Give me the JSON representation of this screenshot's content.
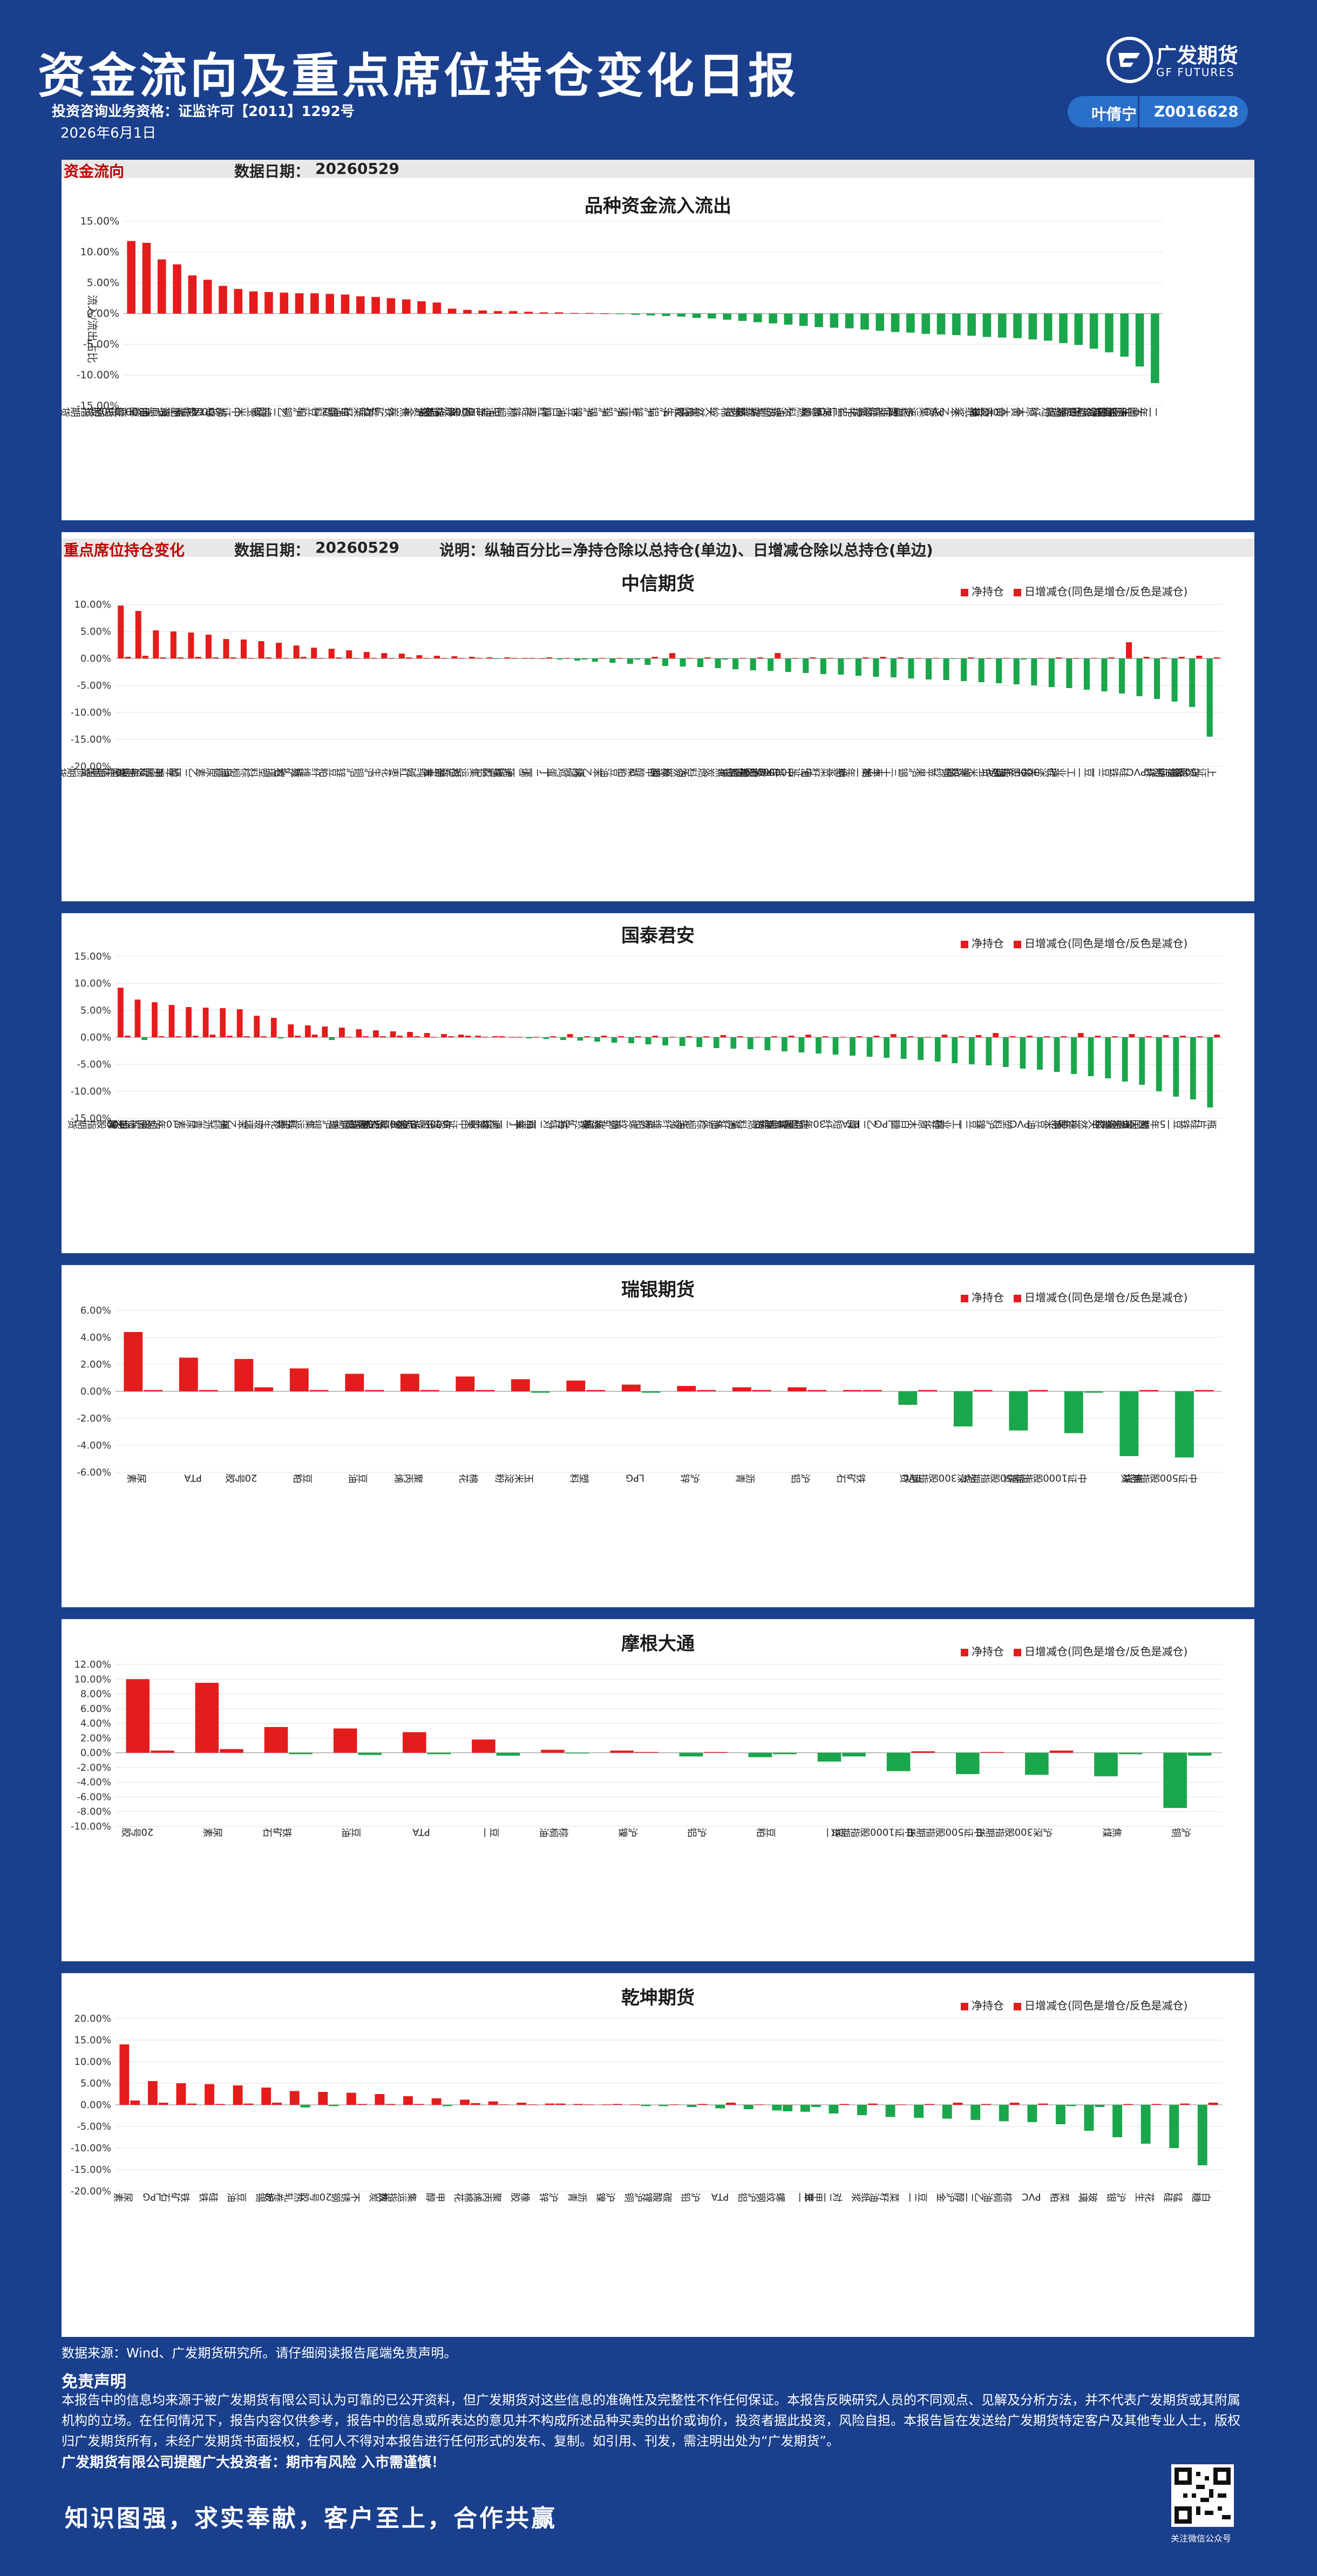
{
  "header": {
    "title": "资金流向及重点席位持仓变化日报",
    "qualification": "投资咨询业务资格：证监许可【2011】1292号",
    "date": "2026年6月1日",
    "logo_cn": "广发期货",
    "logo_en": "GF FUTURES",
    "author_name": "叶倩宁",
    "author_code": "Z0016628"
  },
  "section1": {
    "name": "资金流向",
    "date_label": "数据日期：",
    "date_value": "20260529"
  },
  "section2": {
    "name": "重点席位持仓变化",
    "date_label": "数据日期：",
    "date_value": "20260529",
    "note": "说明：纵轴百分比=净持仓除以总持仓(单边)、日增减仓除以总持仓(单边)"
  },
  "legend": {
    "net": "净持仓",
    "delta": "日增减仓(同色是增仓/反色是减仓)"
  },
  "colors": {
    "up": "#e51c1c",
    "down": "#1aa64b",
    "brand": "#1a3f8c"
  },
  "chart_data": [
    {
      "id": "flow",
      "type": "bar",
      "title": "品种资金流入流出",
      "ylabel": "流入/流出占比",
      "ylim": [
        -15,
        15
      ],
      "yticks": [
        "15.00%",
        "10.00%",
        "5.00%",
        "0.00%",
        "-5.00%",
        "-10.00%",
        "-15.00%"
      ],
      "categories": [
        "上证50股指期货",
        "甲醇",
        "沪深300股指期货",
        "上海原油",
        "尿素",
        "PTA",
        "郑棉",
        "中证500股指期货",
        "玉米",
        "纯碱",
        "乙二醇",
        "沪铜",
        "豆粕",
        "塑料",
        "甲醇2",
        "菜籽油",
        "锰硅",
        "铁矿石",
        "焦炭",
        "沪金",
        "沪银",
        "纤维板",
        "鸡蛋",
        "苹果",
        "中证1000股指期货",
        "棕榈油",
        "硅铁",
        "红枣",
        "白糖",
        "豆油",
        "沪镍",
        "沪锡",
        "沪铅",
        "生猪",
        "沪锌",
        "沪铝",
        "花生",
        "焦煤",
        "天然橡胶",
        "棉纱",
        "菜粕",
        "螺纹钢",
        "热轧卷板",
        "不锈钢",
        "燃料油",
        "沥青",
        "LPG",
        "丁二烯橡胶",
        "氧化铝",
        "碳酸锂",
        "工业硅",
        "多晶硅",
        "集运指数",
        "PVC",
        "苯乙烯",
        "纸浆",
        "玻璃",
        "黄大豆",
        "黄大豆二号",
        "原木",
        "短纤",
        "烧碱",
        "国际铜",
        "对二甲苯",
        "瓶片",
        "十年国债期货",
        "五年国债期货",
        "二年国债期货"
      ],
      "values": [
        11.8,
        11.5,
        8.8,
        8.0,
        6.2,
        5.5,
        4.5,
        4.0,
        3.6,
        3.5,
        3.4,
        3.3,
        3.3,
        3.2,
        3.1,
        2.8,
        2.7,
        2.5,
        2.3,
        2.0,
        1.8,
        0.8,
        0.6,
        0.5,
        0.4,
        0.4,
        0.3,
        0.2,
        0.2,
        0.1,
        0.1,
        0.0,
        -0.1,
        -0.2,
        -0.3,
        -0.4,
        -0.5,
        -0.7,
        -0.8,
        -1.0,
        -1.2,
        -1.4,
        -1.6,
        -1.8,
        -2.0,
        -2.2,
        -2.3,
        -2.4,
        -2.6,
        -2.8,
        -3.0,
        -3.1,
        -3.3,
        -3.4,
        -3.5,
        -3.6,
        -3.8,
        -3.9,
        -4.0,
        -4.2,
        -4.4,
        -4.8,
        -5.1,
        -5.7,
        -6.3,
        -7.0,
        -8.6,
        -11.3
      ]
    },
    {
      "id": "citic",
      "type": "bar",
      "title": "中信期货",
      "ylim": [
        -20,
        10
      ],
      "yticks": [
        "10.00%",
        "5.00%",
        "0.00%",
        "-5.00%",
        "-10.00%",
        "-15.00%",
        "-20.00%"
      ],
      "categories": [
        "30年期国债期货",
        "2年期国债期货",
        "甲醇",
        "5年期国债期货",
        "乙二醇",
        "尿素",
        "白糖",
        "棕榈油",
        "塑料",
        "玻璃",
        "铁矿石",
        "纤维板",
        "豆粕",
        "沪锌",
        "沪铜",
        "花生",
        "红枣",
        "纯碱",
        "沥青",
        "对二甲苯",
        "集运指数",
        "沪铝",
        "沪镍",
        "丁二烯橡胶",
        "丁二烯",
        "鸡蛋",
        "烧碱",
        "苯乙烯",
        "豆油",
        "菜粕",
        "甲醇2",
        "原油",
        "天然橡胶",
        "燃料油",
        "焦炭",
        "沪银",
        "沪金",
        "LPG",
        "中证500股指期货",
        "中证1000股指期货",
        "菜籽油",
        "纸浆",
        "二年期",
        "玉米",
        "三十年期",
        "沪锡",
        "苹果",
        "棉纱",
        "螺纹钢",
        "玉米淀粉",
        "PTA",
        "十年期",
        "生猪",
        "沪深300股指期货",
        "工业硅",
        "豆一",
        "豆二",
        "硅铁",
        "PVC",
        "短纤",
        "瓶片",
        "碳酸锂",
        "上证50股指期货"
      ],
      "net": [
        9.8,
        8.8,
        5.2,
        5.0,
        4.8,
        4.4,
        3.6,
        3.5,
        3.2,
        2.9,
        2.4,
        2.0,
        1.8,
        1.5,
        1.2,
        1.0,
        0.9,
        0.6,
        0.5,
        0.4,
        0.3,
        0.2,
        0.2,
        0.1,
        0.0,
        -0.2,
        -0.4,
        -0.6,
        -0.8,
        -1.0,
        -1.2,
        -1.4,
        -1.5,
        -1.6,
        -1.8,
        -2.0,
        -2.2,
        -2.3,
        -2.5,
        -2.7,
        -2.9,
        -3.0,
        -3.2,
        -3.4,
        -3.5,
        -3.7,
        -3.9,
        -4.0,
        -4.2,
        -4.4,
        -4.6,
        -4.8,
        -5.0,
        -5.3,
        -5.5,
        -5.8,
        -6.1,
        -6.5,
        -7.0,
        -7.5,
        -8.0,
        -9.0,
        -14.5
      ],
      "delta": [
        0.3,
        0.5,
        0.2,
        0.2,
        0.3,
        0.2,
        0.2,
        0.1,
        0.2,
        0.1,
        0.3,
        0.1,
        0.2,
        0.1,
        0.1,
        0.1,
        0.2,
        0.1,
        0.1,
        0.1,
        0.1,
        -0.1,
        0.1,
        0.1,
        0.2,
        0.1,
        -0.2,
        0.1,
        0.1,
        -0.2,
        0.3,
        1.0,
        0.1,
        0.2,
        -0.2,
        0.1,
        0.2,
        1.0,
        0.1,
        0.2,
        0.1,
        -0.1,
        0.2,
        0.3,
        0.2,
        0.1,
        0.1,
        -0.1,
        0.2,
        0.1,
        0.1,
        -0.2,
        0.1,
        0.2,
        0.1,
        0.1,
        0.2,
        3.0,
        0.3,
        0.2,
        0.3,
        0.5,
        0.2
      ]
    },
    {
      "id": "gtja",
      "type": "bar",
      "title": "国泰君安",
      "ylim": [
        -15,
        15
      ],
      "yticks": [
        "15.00%",
        "10.00%",
        "5.00%",
        "0.00%",
        "-5.00%",
        "-10.00%",
        "-15.00%"
      ],
      "categories": [
        "甲醇",
        "沪深300股指期货",
        "沪金",
        "10年期国债期货",
        "尿素",
        "沥青",
        "棉纱",
        "苯乙烯",
        "玻璃",
        "花生",
        "红枣",
        "集运指数",
        "沪银",
        "沪铜",
        "纯碱",
        "沪铝",
        "上证50股指期货",
        "沪锡",
        "中证1000股指期货",
        "焦煤",
        "中证500股指期货",
        "苹果",
        "沪锌",
        "丁二烯橡胶",
        "鸡蛋",
        "对二甲苯",
        "锰硅",
        "铁矿石",
        "烧碱",
        "热轧卷板",
        "螺纹钢",
        "菜粕",
        "纤维板",
        "生猪",
        "棕榈油",
        "焦炭",
        "菜籽油",
        "燃料油",
        "豆粕",
        "多晶硅",
        "碳酸锂",
        "30年期国债期货",
        "短纤",
        "PTA",
        "乙二醇",
        "LPG",
        "白糖",
        "原木",
        "棉花",
        "工业硅",
        "豆二",
        "沪镍",
        "塑料",
        "PVC",
        "豆油",
        "玉米",
        "二年期",
        "天然橡胶",
        "纸浆",
        "玉米淀粉",
        "黄大豆",
        "5年期国债期货",
        "豆一",
        "硅铁",
        "瓶片"
      ],
      "net": [
        9.2,
        7.0,
        6.5,
        6.0,
        5.6,
        5.5,
        5.4,
        5.2,
        4.0,
        3.6,
        2.4,
        2.2,
        2.0,
        1.8,
        1.5,
        1.3,
        1.1,
        1.0,
        0.8,
        0.6,
        0.5,
        0.3,
        0.2,
        0.1,
        -0.2,
        -0.3,
        -0.5,
        -0.6,
        -0.8,
        -1.0,
        -1.1,
        -1.3,
        -1.5,
        -1.6,
        -1.8,
        -2.0,
        -2.1,
        -2.2,
        -2.4,
        -2.6,
        -2.8,
        -3.0,
        -3.2,
        -3.4,
        -3.6,
        -3.8,
        -4.0,
        -4.2,
        -4.5,
        -4.8,
        -5.0,
        -5.2,
        -5.5,
        -5.8,
        -6.0,
        -6.4,
        -6.8,
        -7.2,
        -7.6,
        -8.2,
        -8.8,
        -10.0,
        -11.0,
        -11.5,
        -13.0
      ],
      "delta": [
        0.3,
        -0.5,
        0.2,
        0.2,
        0.3,
        0.5,
        0.3,
        0.2,
        0.2,
        -0.2,
        0.3,
        0.5,
        -0.5,
        0.1,
        0.2,
        0.2,
        0.3,
        0.2,
        0.1,
        0.2,
        0.3,
        0.1,
        0.2,
        0.1,
        0.1,
        0.2,
        0.6,
        0.2,
        0.3,
        0.2,
        0.2,
        0.3,
        0.1,
        0.2,
        0.2,
        0.4,
        0.2,
        0.1,
        0.2,
        0.3,
        0.5,
        0.2,
        0.1,
        0.2,
        0.3,
        0.6,
        0.2,
        0.1,
        0.5,
        0.2,
        0.4,
        0.8,
        0.2,
        0.3,
        0.2,
        0.2,
        0.8,
        0.3,
        0.2,
        0.6,
        0.2,
        0.4,
        0.3,
        0.2,
        0.5
      ]
    },
    {
      "id": "ubs",
      "type": "bar",
      "title": "瑞银期货",
      "ylim": [
        -6,
        6
      ],
      "yticks": [
        "6.00%",
        "4.00%",
        "2.00%",
        "0.00%",
        "-2.00%",
        "-4.00%",
        "-6.00%"
      ],
      "categories": [
        "尿素",
        "PTA",
        "20号胶",
        "豆粕",
        "豆油",
        "聚丙烯",
        "棉花",
        "玉米淀粉",
        "塑料",
        "LPG",
        "沪锌",
        "沥青",
        "沪铝",
        "铁矿石",
        "PVC",
        "沪深300股指期货",
        "上证50股指期货",
        "中证1000股指期货",
        "焦煤",
        "中证500股指期货"
      ],
      "net": [
        4.4,
        2.5,
        2.4,
        1.7,
        1.3,
        1.3,
        1.1,
        0.9,
        0.8,
        0.5,
        0.4,
        0.3,
        0.3,
        0.1,
        -1.0,
        -2.6,
        -2.9,
        -3.1,
        -4.8,
        -4.9
      ],
      "delta": [
        0.1,
        0.1,
        0.3,
        0.1,
        0.1,
        0.1,
        0.1,
        -0.1,
        0.1,
        -0.1,
        0.1,
        0.1,
        0.1,
        0.1,
        0.1,
        0.1,
        0.1,
        -0.1,
        0.1,
        0.1
      ]
    },
    {
      "id": "jpm",
      "type": "bar",
      "title": "摩根大通",
      "ylim": [
        -10,
        12
      ],
      "yticks": [
        "12.00%",
        "10.00%",
        "8.00%",
        "6.00%",
        "4.00%",
        "2.00%",
        "0.00%",
        "-2.00%",
        "-4.00%",
        "-6.00%",
        "-8.00%",
        "-10.00%"
      ],
      "categories": [
        "20号胶",
        "尿素",
        "铁矿石",
        "豆油",
        "PTA",
        "豆一",
        "棕榈油",
        "沪镍",
        "沪铝",
        "豆粕",
        "豆二",
        "中证1000股指期货",
        "中证500股指期货",
        "沪深300股指期货",
        "焦煤",
        "沪铜"
      ],
      "net": [
        10.0,
        9.5,
        3.5,
        3.3,
        2.8,
        1.8,
        0.4,
        0.3,
        -0.5,
        -0.6,
        -1.2,
        -2.5,
        -2.9,
        -3.0,
        -3.2,
        -7.5
      ],
      "delta": [
        0.3,
        0.5,
        -0.2,
        -0.3,
        -0.2,
        -0.4,
        -0.1,
        0.1,
        0.1,
        -0.2,
        -0.5,
        0.2,
        0.1,
        0.3,
        -0.2,
        -0.4
      ]
    },
    {
      "id": "qiankun",
      "type": "bar",
      "title": "乾坤期货",
      "ylim": [
        -20,
        20
      ],
      "yticks": [
        "20.00%",
        "15.00%",
        "10.00%",
        "5.00%",
        "0.00%",
        "-5.00%",
        "-10.00%",
        "-15.00%",
        "-20.00%"
      ],
      "categories": [
        "尿素",
        "LPG",
        "铁矿石",
        "硅铁",
        "豆油",
        "沪锡",
        "热轧卷板",
        "20号胶",
        "不锈钢",
        "焦炭",
        "集运指数",
        "甲醇",
        "棉花",
        "聚丙烯",
        "橡胶",
        "沪锌",
        "沥青",
        "沪镍",
        "沪铜",
        "碳酸锂",
        "沪铅",
        "PTA",
        "沪铝",
        "螺纹钢",
        "豆一",
        "对二甲苯",
        "纸浆",
        "菜籽油",
        "豆二",
        "沪金",
        "乙二醇",
        "棕榈油",
        "PVC",
        "菜粕",
        "玻璃",
        "沪银",
        "花生",
        "锰硅",
        "白糖"
      ],
      "net": [
        14.0,
        5.5,
        5.0,
        4.8,
        4.5,
        4.0,
        3.2,
        3.0,
        2.8,
        2.5,
        2.0,
        1.5,
        1.2,
        0.8,
        0.5,
        0.3,
        0.2,
        0.1,
        0.1,
        -0.3,
        -0.5,
        -0.8,
        -1.0,
        -1.3,
        -1.6,
        -2.0,
        -2.4,
        -2.8,
        -3.0,
        -3.2,
        -3.5,
        -3.8,
        -4.0,
        -4.5,
        -6.0,
        -7.5,
        -9.0,
        -10.0,
        -14.0
      ],
      "delta": [
        1.0,
        0.5,
        0.3,
        0.2,
        0.3,
        0.5,
        -0.6,
        -0.3,
        0.2,
        0.2,
        0.2,
        -0.3,
        0.4,
        0.1,
        0.1,
        0.3,
        0.1,
        0.2,
        -0.3,
        0.1,
        0.2,
        0.5,
        0.1,
        -1.5,
        -0.5,
        0.2,
        0.3,
        0.1,
        0.2,
        0.5,
        0.2,
        0.5,
        0.3,
        -0.3,
        -0.5,
        0.2,
        0.2,
        0.3,
        0.5
      ]
    }
  ],
  "footer": {
    "source": "数据来源：Wind、广发期货研究所。请仔细阅读报告尾端免责声明。",
    "disclaimer_title": "免责声明",
    "disclaimer_body": "本报告中的信息均来源于被广发期货有限公司认为可靠的已公开资料，但广发期货对这些信息的准确性及完整性不作任何保证。本报告反映研究人员的不同观点、见解及分析方法，并不代表广发期货或其附属机构的立场。在任何情况下，报告内容仅供参考，报告中的信息或所表达的意见并不构成所述品种买卖的出价或询价，投资者据此投资，风险自担。本报告旨在发送给广发期货特定客户及其他专业人士，版权归广发期货所有，未经广发期货书面授权，任何人不得对本报告进行任何形式的发布、复制。如引用、刊发，需注明出处为“广发期货”。",
    "disclaimer_last": "广发期货有限公司提醒广大投资者：期市有风险 入市需谨慎！",
    "motto": "知识图强，求实奉献，客户至上，合作共赢",
    "qr_caption": "关注微信公众号"
  }
}
